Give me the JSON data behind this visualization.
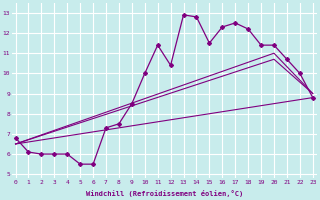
{
  "xlabel": "Windchill (Refroidissement éolien,°C)",
  "bg_color": "#c8ecec",
  "grid_color": "#ffffff",
  "line_color": "#800080",
  "xticks": [
    0,
    1,
    2,
    3,
    4,
    5,
    6,
    7,
    8,
    9,
    10,
    11,
    12,
    13,
    14,
    15,
    16,
    17,
    18,
    19,
    20,
    21,
    22,
    23
  ],
  "yticks": [
    5,
    6,
    7,
    8,
    9,
    10,
    11,
    12,
    13
  ],
  "line1_x": [
    0,
    1,
    2,
    3,
    4,
    5,
    6,
    7,
    8,
    9,
    10,
    11,
    12,
    13,
    14,
    15,
    16,
    17,
    18,
    19,
    20,
    21,
    22,
    23
  ],
  "line1_y": [
    6.8,
    6.1,
    6.0,
    6.0,
    6.0,
    5.5,
    5.5,
    7.3,
    7.5,
    8.5,
    10.0,
    11.4,
    10.4,
    12.9,
    12.8,
    11.5,
    12.3,
    12.5,
    12.2,
    11.4,
    11.4,
    10.7,
    10.0,
    8.8
  ],
  "line2_x": [
    0,
    23
  ],
  "line2_y": [
    6.5,
    8.8
  ],
  "line3_x": [
    0,
    20,
    23
  ],
  "line3_y": [
    6.5,
    10.7,
    9.0
  ],
  "line4_x": [
    0,
    20,
    23
  ],
  "line4_y": [
    6.5,
    11.0,
    9.0
  ],
  "xlim_min": -0.3,
  "xlim_max": 23.3,
  "ylim_min": 4.8,
  "ylim_max": 13.5
}
